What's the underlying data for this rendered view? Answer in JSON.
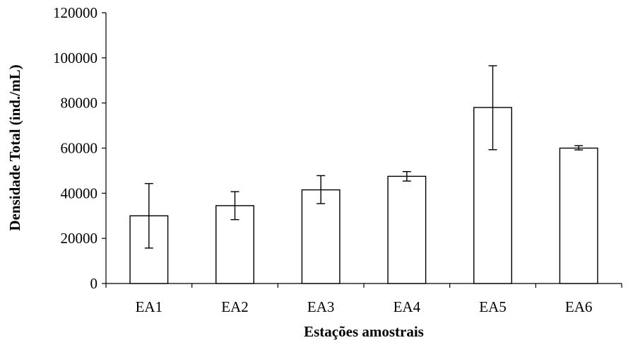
{
  "chart_data": {
    "type": "bar",
    "title": "",
    "xlabel": "Estações amostrais",
    "ylabel": "Densidade Total (ind./mL)",
    "categories": [
      "EA1",
      "EA2",
      "EA3",
      "EA4",
      "EA5",
      "EA6"
    ],
    "values": [
      30000,
      34500,
      41500,
      47500,
      78000,
      60000
    ],
    "error_low": [
      15700,
      28300,
      35400,
      45400,
      59300,
      59200
    ],
    "error_high": [
      44300,
      40700,
      47800,
      49600,
      96500,
      61100
    ],
    "ylim": [
      0,
      120000
    ],
    "yticks": [
      "0",
      "20000",
      "40000",
      "60000",
      "80000",
      "100000",
      "120000"
    ],
    "grid": false,
    "legend": "none",
    "bar_fill": "#ffffff",
    "bar_stroke": "#000000"
  }
}
